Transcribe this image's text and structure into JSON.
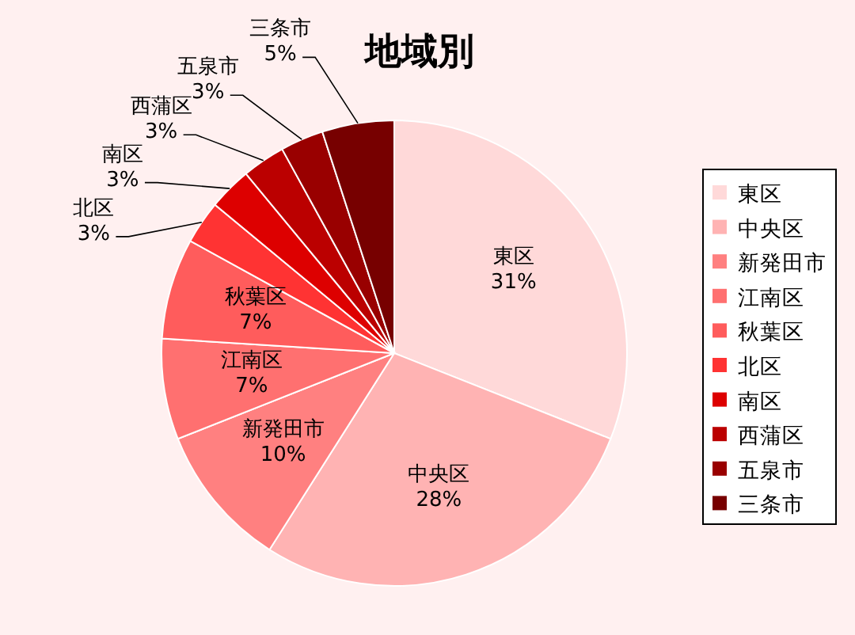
{
  "chart_data": {
    "type": "pie",
    "title": "地域別",
    "categories": [
      "東区",
      "中央区",
      "新発田市",
      "江南区",
      "秋葉区",
      "北区",
      "南区",
      "西蒲区",
      "五泉市",
      "三条市"
    ],
    "values": [
      31,
      28,
      10,
      7,
      7,
      3,
      3,
      3,
      3,
      5
    ],
    "colors": [
      "#ffd9d9",
      "#ffb3b3",
      "#ff8080",
      "#ff7070",
      "#ff5c5c",
      "#ff3333",
      "#dd0000",
      "#bb0000",
      "#990000",
      "#770000"
    ],
    "value_labels": [
      "31%",
      "28%",
      "10%",
      "7%",
      "7%",
      "3%",
      "3%",
      "3%",
      "3%",
      "5%"
    ],
    "legend": "right"
  }
}
